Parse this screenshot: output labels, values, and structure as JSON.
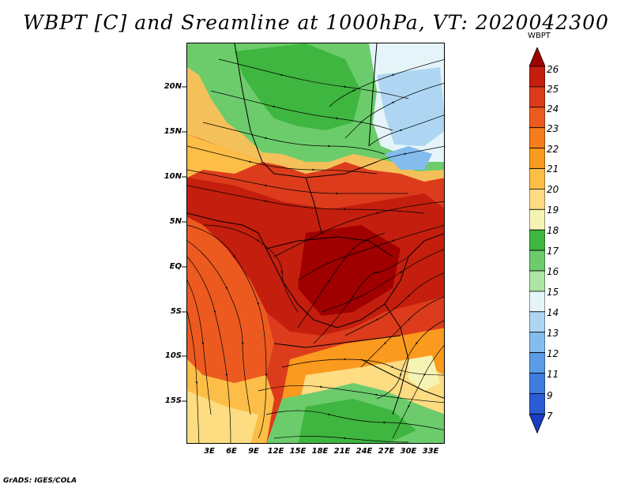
{
  "title": "WBPT [C] and Sreamline at 1000hPa, VT: 2020042300",
  "credit": "GrADS: IGES/COLA",
  "map": {
    "lat_labels": [
      "20N",
      "15N",
      "10N",
      "5N",
      "EQ",
      "5S",
      "10S",
      "15S"
    ],
    "lon_labels": [
      "3E",
      "6E",
      "9E",
      "12E",
      "15E",
      "18E",
      "21E",
      "24E",
      "27E",
      "30E",
      "33E"
    ]
  },
  "colorbar": {
    "levels": [
      "26",
      "25",
      "24",
      "23",
      "22",
      "21",
      "20",
      "19",
      "18",
      "17",
      "16",
      "15",
      "14",
      "13",
      "12",
      "11",
      "9",
      "7"
    ],
    "colors": [
      "#a00000",
      "#c41e0e",
      "#dc3c1c",
      "#ec5a20",
      "#f47c1c",
      "#fa9a1e",
      "#fcbe46",
      "#fddc82",
      "#f6f4b4",
      "#3fb63f",
      "#6ccc6c",
      "#aee4a4",
      "#e4f4f8",
      "#aed6f2",
      "#84bcee",
      "#5a9ce6",
      "#3c7cdc",
      "#2c5cd4",
      "#1c3cc4"
    ]
  },
  "legend": {
    "scale_name": "WBPT"
  }
}
